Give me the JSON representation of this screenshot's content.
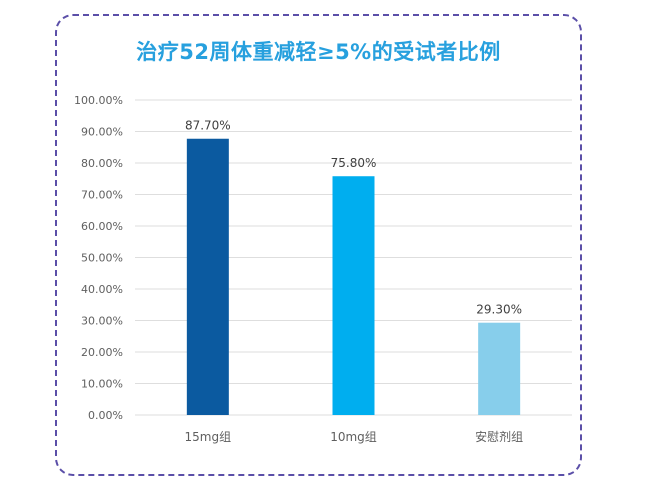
{
  "chart_data": {
    "type": "bar",
    "title": "治疗52周体重减轻≥5%的受试者比例",
    "categories": [
      "15mg组",
      "10mg组",
      "安慰剂组"
    ],
    "values": [
      87.7,
      75.8,
      29.3
    ],
    "value_labels": [
      "87.70%",
      "75.80%",
      "29.30%"
    ],
    "bar_colors": [
      "#0b5aa0",
      "#00aeef",
      "#87ceeb"
    ],
    "ylim": [
      0,
      100
    ],
    "yticks": [
      0,
      10,
      20,
      30,
      40,
      50,
      60,
      70,
      80,
      90,
      100
    ],
    "ytick_labels": [
      "0.00%",
      "10.00%",
      "20.00%",
      "30.00%",
      "40.00%",
      "50.00%",
      "60.00%",
      "70.00%",
      "80.00%",
      "90.00%",
      "100.00%"
    ],
    "xlabel": "",
    "ylabel": "",
    "grid": true,
    "legend": "none"
  },
  "colors": {
    "title": "#27a0de",
    "frame": "#5b4fa8"
  }
}
